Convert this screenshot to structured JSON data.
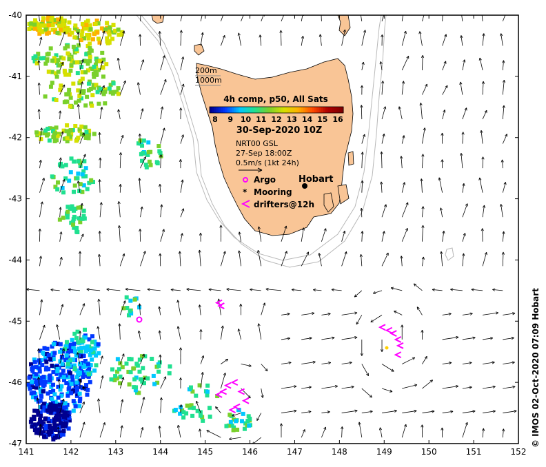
{
  "map": {
    "region": "Tasmania",
    "lon_range": [
      141,
      152
    ],
    "lat_range": [
      -47,
      -40
    ],
    "x_ticks": [
      "141",
      "142",
      "143",
      "144",
      "145",
      "146",
      "147",
      "148",
      "149",
      "150",
      "151",
      "152"
    ],
    "y_ticks": [
      "-40",
      "-41",
      "-42",
      "-43",
      "-44",
      "-45",
      "-46",
      "-47"
    ],
    "land_color": "#f9c596",
    "contour_color": "#b0b0b0",
    "arrow_color": "#000000"
  },
  "legend": {
    "contour_200": "200m",
    "contour_1000": "1000m",
    "sst_title": "4h comp, p50, All Sats",
    "colorbar_ticks": [
      "8",
      "9",
      "10",
      "11",
      "12",
      "13",
      "14",
      "15",
      "16"
    ],
    "colorbar_colors": [
      "#00008f",
      "#0037ff",
      "#00c8ff",
      "#20e090",
      "#7ad02c",
      "#d6e000",
      "#ffb000",
      "#ff4800",
      "#b00000",
      "#800000"
    ],
    "date": "30-Sep-2020 10Z",
    "current_source": "NRT00 GSL",
    "current_date": "27-Sep 18:00Z",
    "scale_arrow": "0.5m/s (1kt 24h)",
    "argo_label": "Argo",
    "mooring_label": "Mooring",
    "drifters_label": "drifters@12h",
    "argo_color": "#ff00ff",
    "drifter_color": "#ff00ff"
  },
  "places": {
    "hobart": "Hobart"
  },
  "credit": "© IMOS 02-Oct-2020 07:09 Hobart"
}
